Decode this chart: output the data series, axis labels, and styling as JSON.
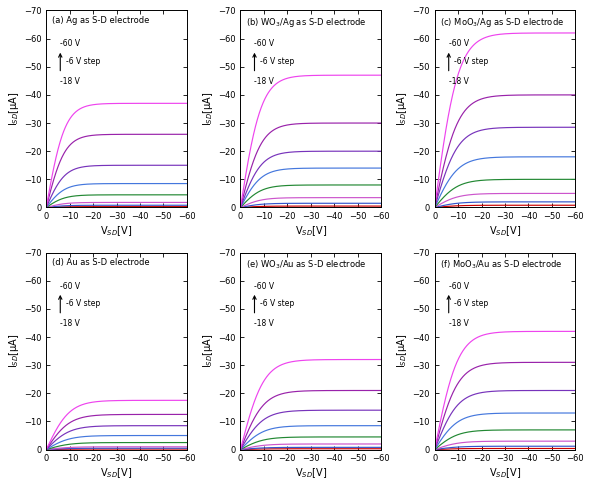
{
  "panels": [
    {
      "label": "(a) Ag as S-D electrode",
      "saturation_currents": [
        0.3,
        0.8,
        1.8,
        4.5,
        8.5,
        15.0,
        26.0,
        37.0
      ],
      "knee": 8.0
    },
    {
      "label": "(b) WO$_3$/Ag as S-D electrode",
      "saturation_currents": [
        0.5,
        1.5,
        3.5,
        8.0,
        14.0,
        20.0,
        30.0,
        47.0
      ],
      "knee": 9.0
    },
    {
      "label": "(c) MoO$_3$/Ag as S-D electrode",
      "saturation_currents": [
        0.8,
        2.0,
        5.0,
        10.0,
        18.0,
        28.5,
        40.0,
        62.0
      ],
      "knee": 10.0
    },
    {
      "label": "(d) Au as S-D electrode",
      "saturation_currents": [
        0.2,
        0.5,
        1.0,
        2.5,
        5.0,
        8.5,
        12.5,
        17.5
      ],
      "knee": 10.0
    },
    {
      "label": "(e) WO$_3$/Au as S-D electrode",
      "saturation_currents": [
        0.3,
        0.8,
        2.0,
        4.5,
        8.5,
        14.0,
        21.0,
        32.0
      ],
      "knee": 10.0
    },
    {
      "label": "(f) MoO$_3$/Au as S-D electrode",
      "saturation_currents": [
        0.4,
        1.2,
        3.0,
        7.0,
        13.0,
        21.0,
        31.0,
        42.0
      ],
      "knee": 10.0
    }
  ],
  "colors": [
    "#cc0000",
    "#3355cc",
    "#cc55cc",
    "#228833",
    "#4477dd",
    "#7733bb",
    "#9922aa",
    "#ee44ee"
  ],
  "xticks": [
    0,
    -10,
    -20,
    -30,
    -40,
    -50,
    -60
  ],
  "yticks": [
    0,
    -10,
    -20,
    -30,
    -40,
    -50,
    -60,
    -70
  ],
  "xlabel": "V$_{SD}$[V]",
  "ylabel": "I$_{SD}$[μA]",
  "ann_top": "-60 V",
  "ann_mid": "-6 V step",
  "ann_bot": "-18 V",
  "figsize": [
    5.91,
    4.87
  ],
  "dpi": 100
}
